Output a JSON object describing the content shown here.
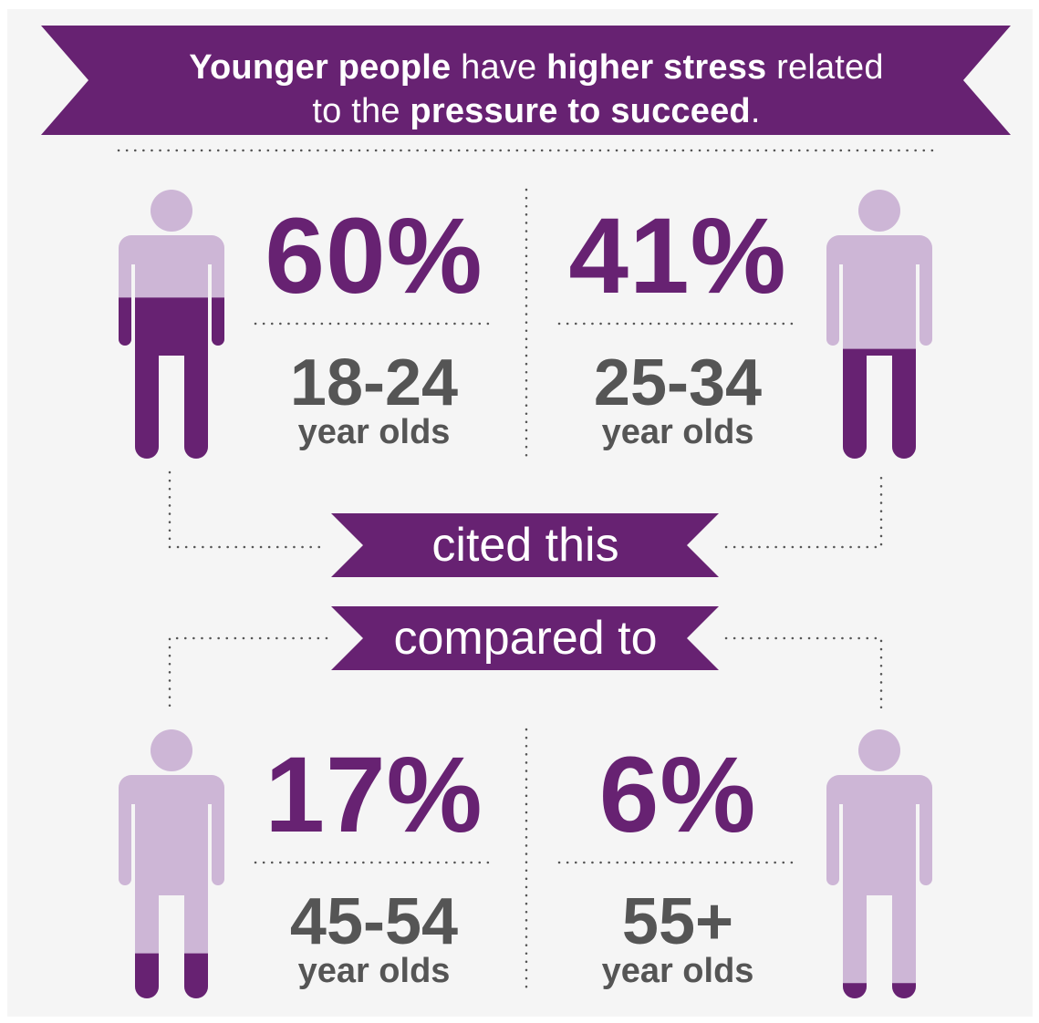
{
  "header": {
    "part1_bold": "Younger people",
    "part2": " have ",
    "part3_bold": "higher stress",
    "part4": " related",
    "part5": "to the ",
    "part6_bold": "pressure to succeed",
    "part7": "."
  },
  "banners": {
    "cited": "cited this",
    "compared": "compared to"
  },
  "colors": {
    "purple_dark": "#672272",
    "purple_light": "#cdb6d6",
    "text_grey": "#555555",
    "background": "#f5f5f5"
  },
  "icons": {
    "person": "person-icon"
  },
  "chart_data": {
    "type": "pictograph",
    "unit_label": "year olds",
    "categories": [
      "18-24",
      "25-34",
      "45-54",
      "55+"
    ],
    "values": [
      60,
      41,
      17,
      6
    ],
    "value_labels": [
      "60%",
      "41%",
      "17%",
      "6%"
    ]
  }
}
